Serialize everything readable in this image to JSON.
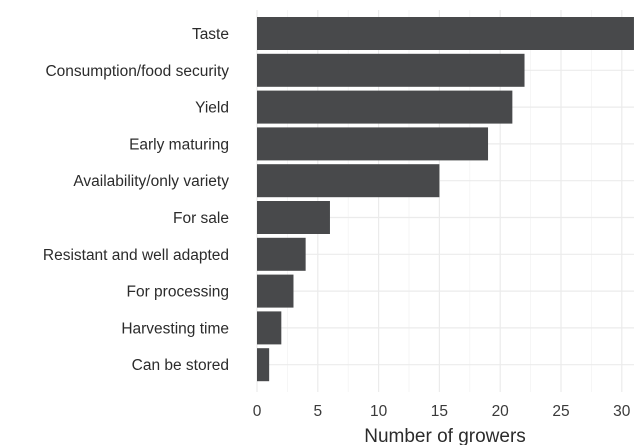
{
  "chart_data": {
    "type": "bar",
    "orientation": "horizontal",
    "categories": [
      "Taste",
      "Consumption/food security",
      "Yield",
      "Early maturing",
      "Availability/only variety",
      "For sale",
      "Resistant and well adapted",
      "For processing",
      "Harvesting time",
      "Can be stored"
    ],
    "values": [
      31,
      22,
      21,
      19,
      15,
      6,
      4,
      3,
      2,
      1
    ],
    "xlabel": "Number of growers",
    "ylabel": "",
    "xlim": [
      0,
      31
    ],
    "xticks": [
      0,
      5,
      10,
      15,
      20,
      25,
      30
    ],
    "tick_labels": [
      "0",
      "5",
      "10",
      "15",
      "20",
      "25",
      "30"
    ],
    "grid": true,
    "bar_color": "#48494b",
    "grid_color": "#ebebeb"
  }
}
